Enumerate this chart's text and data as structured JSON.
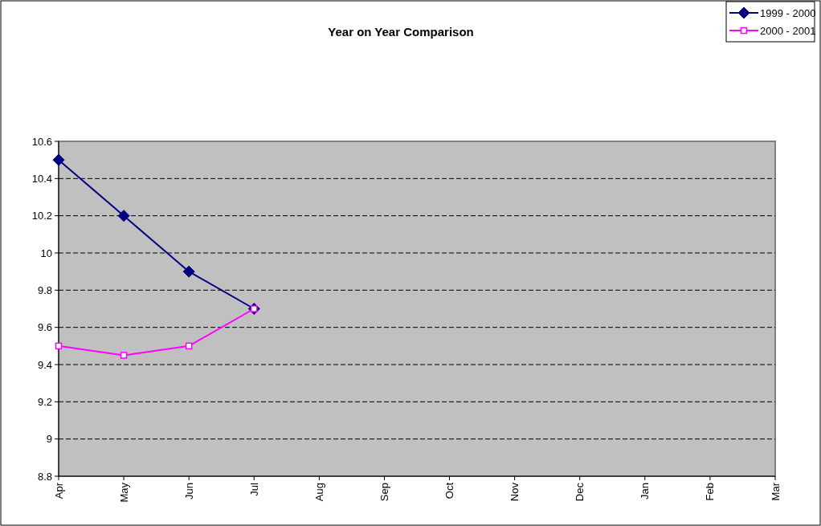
{
  "chart_data": {
    "type": "line",
    "title": "Year on Year Comparison",
    "categories": [
      "Apr",
      "May",
      "Jun",
      "Jul",
      "Aug",
      "Sep",
      "Oct",
      "Nov",
      "Dec",
      "Jan",
      "Feb",
      "Mar"
    ],
    "series": [
      {
        "name": "1999 - 2000",
        "color": "#000080",
        "marker": "diamond",
        "values": [
          10.5,
          10.2,
          9.9,
          9.7,
          null,
          null,
          null,
          null,
          null,
          null,
          null,
          null
        ]
      },
      {
        "name": "2000 - 2001",
        "color": "#ff00ff",
        "marker": "square",
        "values": [
          9.5,
          9.45,
          9.5,
          9.7,
          null,
          null,
          null,
          null,
          null,
          null,
          null,
          null
        ]
      }
    ],
    "ylim": [
      8.8,
      10.6
    ],
    "yticks": [
      8.8,
      9,
      9.2,
      9.4,
      9.6,
      9.8,
      10,
      10.2,
      10.4,
      10.6
    ],
    "grid": "y",
    "legend": "top right",
    "line_style": "solid"
  }
}
